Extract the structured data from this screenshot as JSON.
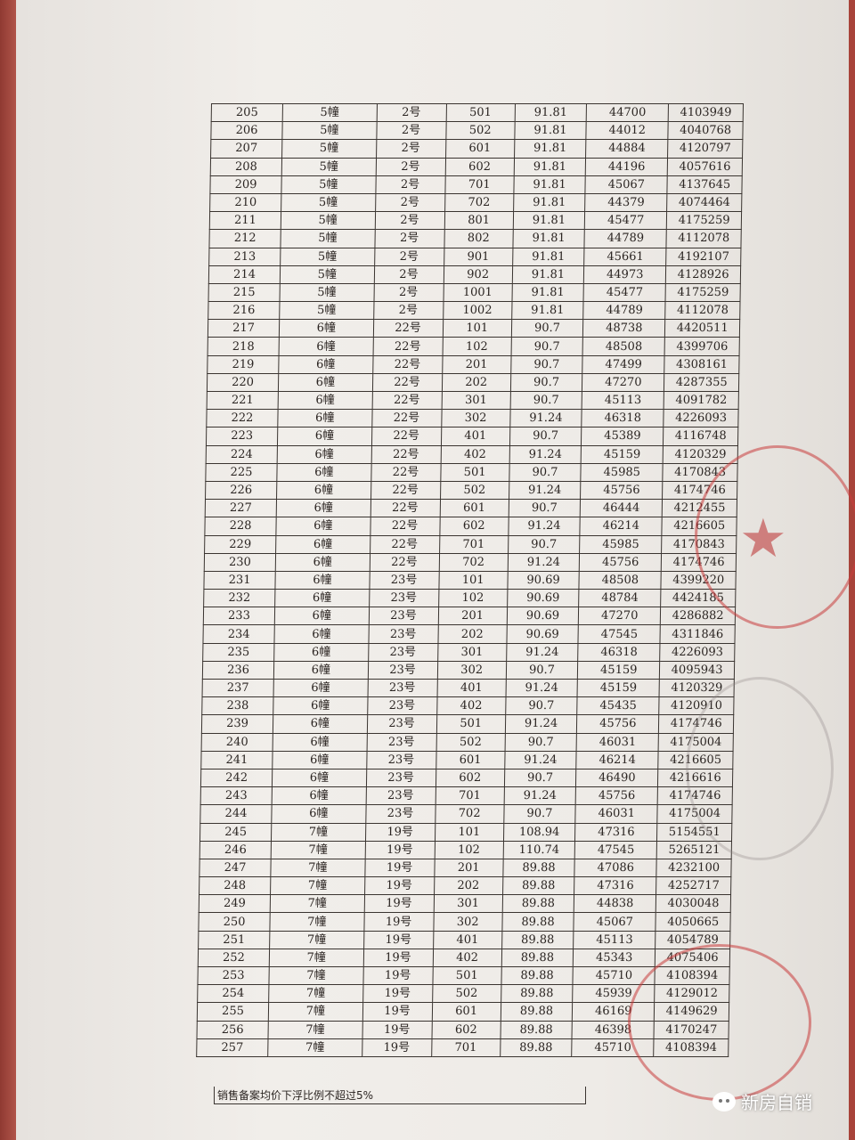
{
  "table": {
    "rows": [
      [
        "205",
        "5幢",
        "2号",
        "501",
        "91.81",
        "44700",
        "4103949"
      ],
      [
        "206",
        "5幢",
        "2号",
        "502",
        "91.81",
        "44012",
        "4040768"
      ],
      [
        "207",
        "5幢",
        "2号",
        "601",
        "91.81",
        "44884",
        "4120797"
      ],
      [
        "208",
        "5幢",
        "2号",
        "602",
        "91.81",
        "44196",
        "4057616"
      ],
      [
        "209",
        "5幢",
        "2号",
        "701",
        "91.81",
        "45067",
        "4137645"
      ],
      [
        "210",
        "5幢",
        "2号",
        "702",
        "91.81",
        "44379",
        "4074464"
      ],
      [
        "211",
        "5幢",
        "2号",
        "801",
        "91.81",
        "45477",
        "4175259"
      ],
      [
        "212",
        "5幢",
        "2号",
        "802",
        "91.81",
        "44789",
        "4112078"
      ],
      [
        "213",
        "5幢",
        "2号",
        "901",
        "91.81",
        "45661",
        "4192107"
      ],
      [
        "214",
        "5幢",
        "2号",
        "902",
        "91.81",
        "44973",
        "4128926"
      ],
      [
        "215",
        "5幢",
        "2号",
        "1001",
        "91.81",
        "45477",
        "4175259"
      ],
      [
        "216",
        "5幢",
        "2号",
        "1002",
        "91.81",
        "44789",
        "4112078"
      ],
      [
        "217",
        "6幢",
        "22号",
        "101",
        "90.7",
        "48738",
        "4420511"
      ],
      [
        "218",
        "6幢",
        "22号",
        "102",
        "90.7",
        "48508",
        "4399706"
      ],
      [
        "219",
        "6幢",
        "22号",
        "201",
        "90.7",
        "47499",
        "4308161"
      ],
      [
        "220",
        "6幢",
        "22号",
        "202",
        "90.7",
        "47270",
        "4287355"
      ],
      [
        "221",
        "6幢",
        "22号",
        "301",
        "90.7",
        "45113",
        "4091782"
      ],
      [
        "222",
        "6幢",
        "22号",
        "302",
        "91.24",
        "46318",
        "4226093"
      ],
      [
        "223",
        "6幢",
        "22号",
        "401",
        "90.7",
        "45389",
        "4116748"
      ],
      [
        "224",
        "6幢",
        "22号",
        "402",
        "91.24",
        "45159",
        "4120329"
      ],
      [
        "225",
        "6幢",
        "22号",
        "501",
        "90.7",
        "45985",
        "4170843"
      ],
      [
        "226",
        "6幢",
        "22号",
        "502",
        "91.24",
        "45756",
        "4174746"
      ],
      [
        "227",
        "6幢",
        "22号",
        "601",
        "90.7",
        "46444",
        "4212455"
      ],
      [
        "228",
        "6幢",
        "22号",
        "602",
        "91.24",
        "46214",
        "4216605"
      ],
      [
        "229",
        "6幢",
        "22号",
        "701",
        "90.7",
        "45985",
        "4170843"
      ],
      [
        "230",
        "6幢",
        "22号",
        "702",
        "91.24",
        "45756",
        "4174746"
      ],
      [
        "231",
        "6幢",
        "23号",
        "101",
        "90.69",
        "48508",
        "4399220"
      ],
      [
        "232",
        "6幢",
        "23号",
        "102",
        "90.69",
        "48784",
        "4424185"
      ],
      [
        "233",
        "6幢",
        "23号",
        "201",
        "90.69",
        "47270",
        "4286882"
      ],
      [
        "234",
        "6幢",
        "23号",
        "202",
        "90.69",
        "47545",
        "4311846"
      ],
      [
        "235",
        "6幢",
        "23号",
        "301",
        "91.24",
        "46318",
        "4226093"
      ],
      [
        "236",
        "6幢",
        "23号",
        "302",
        "90.7",
        "45159",
        "4095943"
      ],
      [
        "237",
        "6幢",
        "23号",
        "401",
        "91.24",
        "45159",
        "4120329"
      ],
      [
        "238",
        "6幢",
        "23号",
        "402",
        "90.7",
        "45435",
        "4120910"
      ],
      [
        "239",
        "6幢",
        "23号",
        "501",
        "91.24",
        "45756",
        "4174746"
      ],
      [
        "240",
        "6幢",
        "23号",
        "502",
        "90.7",
        "46031",
        "4175004"
      ],
      [
        "241",
        "6幢",
        "23号",
        "601",
        "91.24",
        "46214",
        "4216605"
      ],
      [
        "242",
        "6幢",
        "23号",
        "602",
        "90.7",
        "46490",
        "4216616"
      ],
      [
        "243",
        "6幢",
        "23号",
        "701",
        "91.24",
        "45756",
        "4174746"
      ],
      [
        "244",
        "6幢",
        "23号",
        "702",
        "90.7",
        "46031",
        "4175004"
      ],
      [
        "245",
        "7幢",
        "19号",
        "101",
        "108.94",
        "47316",
        "5154551"
      ],
      [
        "246",
        "7幢",
        "19号",
        "102",
        "110.74",
        "47545",
        "5265121"
      ],
      [
        "247",
        "7幢",
        "19号",
        "201",
        "89.88",
        "47086",
        "4232100"
      ],
      [
        "248",
        "7幢",
        "19号",
        "202",
        "89.88",
        "47316",
        "4252717"
      ],
      [
        "249",
        "7幢",
        "19号",
        "301",
        "89.88",
        "44838",
        "4030048"
      ],
      [
        "250",
        "7幢",
        "19号",
        "302",
        "89.88",
        "45067",
        "4050665"
      ],
      [
        "251",
        "7幢",
        "19号",
        "401",
        "89.88",
        "45113",
        "4054789"
      ],
      [
        "252",
        "7幢",
        "19号",
        "402",
        "89.88",
        "45343",
        "4075406"
      ],
      [
        "253",
        "7幢",
        "19号",
        "501",
        "89.88",
        "45710",
        "4108394"
      ],
      [
        "254",
        "7幢",
        "19号",
        "502",
        "89.88",
        "45939",
        "4129012"
      ],
      [
        "255",
        "7幢",
        "19号",
        "601",
        "89.88",
        "46169",
        "4149629"
      ],
      [
        "256",
        "7幢",
        "19号",
        "602",
        "89.88",
        "46398",
        "4170247"
      ],
      [
        "257",
        "7幢",
        "19号",
        "701",
        "89.88",
        "45710",
        "4108394"
      ]
    ]
  },
  "footer_note": "销售备案均价下浮比例不超过5%",
  "watermark": {
    "text": "新房自销",
    "icon": "wechat-icon"
  },
  "colors": {
    "stamp": "#c83c3c",
    "background": "#a8433a"
  }
}
